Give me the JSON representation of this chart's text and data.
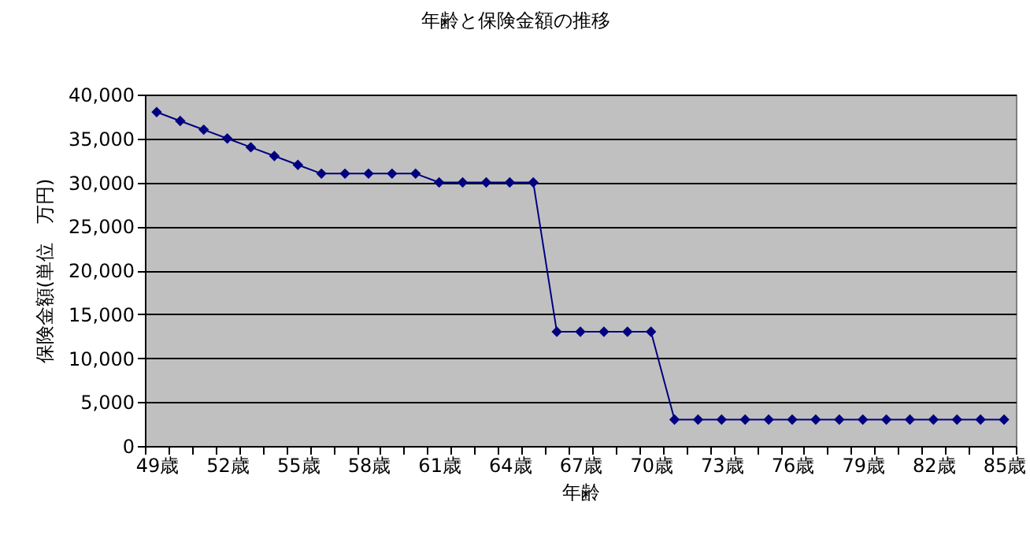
{
  "chart_data": {
    "type": "line",
    "title": "年齢と保険金額の推移",
    "xlabel": "年齢",
    "ylabel": "保険金額(単位　万円)",
    "categories": [
      "49歳",
      null,
      null,
      "52歳",
      null,
      null,
      "55歳",
      null,
      null,
      "58歳",
      null,
      null,
      "61歳",
      null,
      null,
      "64歳",
      null,
      null,
      "67歳",
      null,
      null,
      "70歳",
      null,
      null,
      "73歳",
      null,
      null,
      "76歳",
      null,
      null,
      "79歳",
      null,
      null,
      "82歳",
      null,
      null,
      "85歳"
    ],
    "series": [
      {
        "color": "#000080",
        "values": [
          38000,
          37000,
          36000,
          35000,
          34000,
          33000,
          32000,
          31000,
          31000,
          31000,
          31000,
          31000,
          30000,
          30000,
          30000,
          30000,
          30000,
          13000,
          13000,
          13000,
          13000,
          13000,
          3000,
          3000,
          3000,
          3000,
          3000,
          3000,
          3000,
          3000,
          3000,
          3000,
          3000,
          3000,
          3000,
          3000,
          3000
        ]
      }
    ],
    "ylim": [
      0,
      40000
    ],
    "yticks": [
      0,
      {
        "value": 5000,
        "label": "5,000"
      },
      {
        "value": 10000,
        "label": "10,000"
      },
      {
        "value": 15000,
        "label": "15,000"
      },
      {
        "value": 20000,
        "label": "20,000"
      },
      {
        "value": 25000,
        "label": "25,000"
      },
      {
        "value": 30000,
        "label": "30,000"
      },
      {
        "value": 35000,
        "label": "35,000"
      },
      {
        "value": 40000,
        "label": "40,000"
      }
    ],
    "grid": "y",
    "marker": "diamond",
    "line_style": "solid",
    "legend": false
  }
}
